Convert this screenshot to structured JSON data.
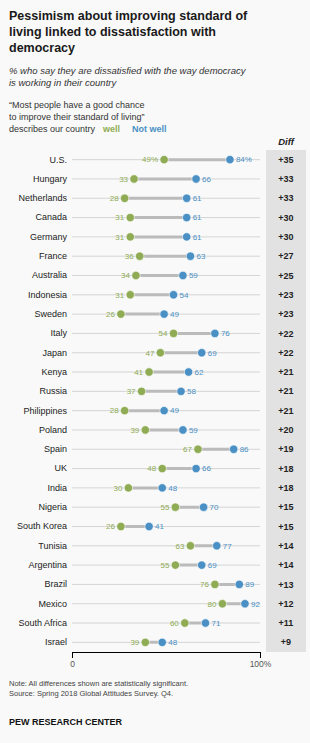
{
  "chart_data": {
    "type": "dumbbell",
    "title": "Pessimism about improving standard of\nliving linked to dissatisfaction with\ndemocracy",
    "subtitle": "% who say they are dissatisfied with the way democracy\nis working in their country",
    "annotations": [
      "“Most people have a good chance\nto improve their standard of living”\ndescribes our country",
      "Note: All differences shown are statistically significant.\nSource: Spring 2018 Global Attitudes Survey. Q4.",
      "PEW RESEARCH CENTER"
    ],
    "categories": [
      "U.S.",
      "Hungary",
      "Netherlands",
      "Canada",
      "Germany",
      "France",
      "Australia",
      "Indonesia",
      "Sweden",
      "Italy",
      "Japan",
      "Kenya",
      "Russia",
      "Philippines",
      "Poland",
      "Spain",
      "UK",
      "India",
      "Nigeria",
      "South Korea",
      "Tunisia",
      "Argentina",
      "Brazil",
      "Mexico",
      "South Africa",
      "Israel"
    ],
    "series": [
      {
        "name": "well",
        "color": "#8fac54",
        "values": [
          49,
          33,
          28,
          31,
          31,
          36,
          34,
          31,
          26,
          54,
          47,
          41,
          37,
          28,
          39,
          67,
          48,
          30,
          55,
          26,
          63,
          55,
          76,
          80,
          60,
          39
        ],
        "value_labels": [
          "49%",
          "33",
          "28",
          "31",
          "31",
          "36",
          "34",
          "31",
          "26",
          "54",
          "47",
          "41",
          "37",
          "28",
          "39",
          "67",
          "48",
          "30",
          "55",
          "26",
          "63",
          "55",
          "76",
          "80",
          "60",
          "39"
        ]
      },
      {
        "name": "Not well",
        "color": "#4a90c4",
        "values": [
          84,
          66,
          61,
          61,
          61,
          63,
          59,
          54,
          49,
          76,
          69,
          62,
          58,
          49,
          59,
          86,
          66,
          48,
          70,
          41,
          77,
          69,
          89,
          92,
          71,
          48
        ],
        "value_labels": [
          "84%",
          "66",
          "61",
          "61",
          "61",
          "63",
          "59",
          "54",
          "49",
          "76",
          "69",
          "62",
          "58",
          "49",
          "59",
          "86",
          "66",
          "48",
          "70",
          "41",
          "77",
          "69",
          "89",
          "92",
          "71",
          "48"
        ]
      },
      {
        "name": "Diff",
        "type": "text",
        "values": [
          35,
          33,
          33,
          30,
          30,
          27,
          25,
          23,
          23,
          22,
          22,
          21,
          21,
          21,
          20,
          19,
          18,
          18,
          15,
          15,
          14,
          14,
          13,
          12,
          11,
          9
        ],
        "value_labels": [
          "+35",
          "+33",
          "+33",
          "+30",
          "+30",
          "+27",
          "+25",
          "+23",
          "+23",
          "+22",
          "+22",
          "+21",
          "+21",
          "+21",
          "+20",
          "+19",
          "+18",
          "+18",
          "+15",
          "+15",
          "+14",
          "+14",
          "+13",
          "+12",
          "+11",
          "+9"
        ]
      }
    ],
    "xlim": [
      0,
      100
    ],
    "xticks": [
      0,
      {
        "value": 100,
        "label": "100%"
      }
    ],
    "grid": true,
    "legend": "top",
    "data_labels": true,
    "marker": "circle"
  }
}
